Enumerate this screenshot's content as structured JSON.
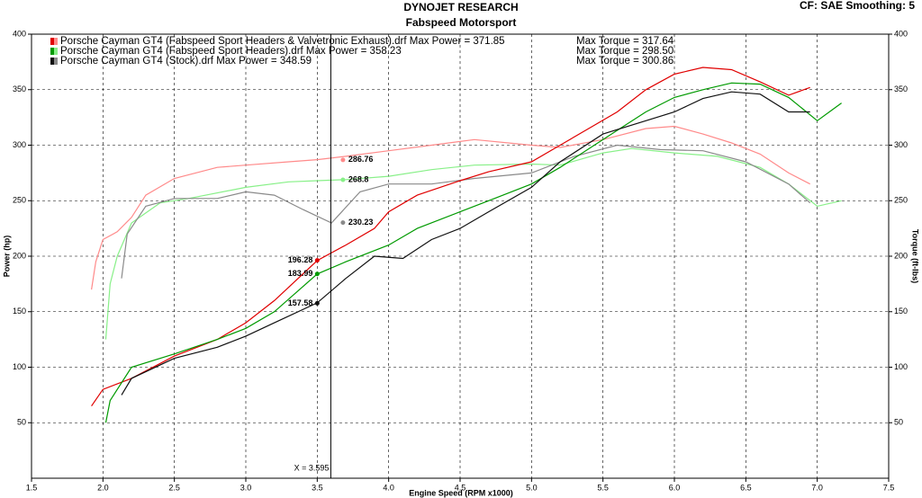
{
  "chart_data": {
    "type": "line",
    "title": "DYNOJET RESEARCH",
    "subtitle": "Fabspeed Motorsport",
    "settings_text": "CF: SAE  Smoothing: 5",
    "x_label": "Engine Speed (RPM x1000)",
    "y_label": "Power (hp)",
    "y2_label": "Torque (ft-lbs)",
    "grid": true,
    "xlim": [
      1.5,
      7.5
    ],
    "xticks": [
      1.5,
      {
        "value": 2,
        "label": "2.0"
      },
      2.5,
      {
        "value": 3,
        "label": "3.0"
      },
      3.5,
      {
        "value": 4,
        "label": "4.0"
      },
      4.5,
      {
        "value": 5,
        "label": "5.0"
      },
      5.5,
      {
        "value": 6,
        "label": "6.0"
      },
      6.5,
      {
        "value": 7,
        "label": "7.0"
      },
      7.5
    ],
    "ylim": [
      0,
      400
    ],
    "yticks": [
      50,
      100,
      150,
      200,
      250,
      300,
      350,
      400
    ],
    "y2lim": [
      0,
      400
    ],
    "y2ticks": [
      50,
      100,
      150,
      200,
      250,
      300,
      350,
      400
    ],
    "series": [
      {
        "name": "Porsche Cayman GT4 (Fabspeed Sport Headers & Valvetronic Exhaust).drf Max Power = 371.85",
        "torque_name": "Max Torque = 317.64",
        "color": "#e00000",
        "torque_color": "#ff8a8a",
        "x": [
          1.92,
          2.0,
          2.2,
          2.5,
          2.8,
          3.0,
          3.2,
          3.5,
          3.7,
          3.9,
          4.0,
          4.2,
          4.5,
          4.7,
          5.0,
          5.2,
          5.4,
          5.6,
          5.8,
          6.0,
          6.2,
          6.4,
          6.6,
          6.8,
          6.95
        ],
        "values": [
          65,
          80,
          90,
          110,
          125,
          140,
          160,
          196,
          210,
          225,
          240,
          255,
          268,
          276,
          285,
          300,
          315,
          330,
          350,
          364,
          370,
          368,
          357,
          345,
          352
        ],
        "torque_x": [
          1.92,
          1.95,
          2.0,
          2.1,
          2.2,
          2.3,
          2.5,
          2.8,
          3.0,
          3.3,
          3.5,
          3.7,
          4.0,
          4.3,
          4.6,
          5.0,
          5.2,
          5.5,
          5.8,
          6.0,
          6.2,
          6.4,
          6.6,
          6.8,
          6.95
        ],
        "torque": [
          170,
          195,
          215,
          222,
          235,
          255,
          270,
          280,
          282,
          285,
          287,
          290,
          295,
          300,
          305,
          300,
          298,
          305,
          315,
          317,
          310,
          302,
          292,
          275,
          265
        ]
      },
      {
        "name": "Porsche Cayman GT4 (Fabspeed Sport Headers).drf Max Power = 358.23",
        "torque_name": "Max Torque = 298.50",
        "color": "#009a00",
        "torque_color": "#88f088",
        "x": [
          2.02,
          2.05,
          2.2,
          2.5,
          2.8,
          3.0,
          3.2,
          3.5,
          3.7,
          4.0,
          4.2,
          4.5,
          4.7,
          5.0,
          5.2,
          5.5,
          5.8,
          6.0,
          6.2,
          6.4,
          6.6,
          6.8,
          7.0,
          7.17
        ],
        "values": [
          50,
          70,
          100,
          112,
          125,
          135,
          150,
          184,
          195,
          210,
          225,
          240,
          250,
          265,
          280,
          305,
          330,
          343,
          350,
          356,
          355,
          343,
          322,
          338
        ],
        "torque_x": [
          2.02,
          2.05,
          2.1,
          2.2,
          2.4,
          2.6,
          3.0,
          3.3,
          3.5,
          3.7,
          4.0,
          4.3,
          4.6,
          5.0,
          5.2,
          5.5,
          5.7,
          6.0,
          6.3,
          6.6,
          6.8,
          7.0,
          7.17
        ],
        "torque": [
          125,
          175,
          200,
          230,
          248,
          252,
          262,
          267,
          268,
          269,
          272,
          278,
          282,
          283,
          282,
          293,
          297,
          293,
          290,
          280,
          265,
          245,
          250
        ]
      },
      {
        "name": "Porsche Cayman GT4 (Stock).drf Max Power = 348.59",
        "torque_name": "Max Torque = 300.86",
        "color": "#111111",
        "torque_color": "#8a8a8a",
        "x": [
          2.13,
          2.2,
          2.5,
          2.8,
          3.0,
          3.2,
          3.5,
          3.7,
          3.9,
          4.1,
          4.3,
          4.5,
          4.7,
          5.0,
          5.2,
          5.5,
          5.8,
          6.0,
          6.2,
          6.4,
          6.6,
          6.8,
          6.95
        ],
        "values": [
          75,
          90,
          108,
          118,
          128,
          140,
          158,
          180,
          200,
          198,
          215,
          225,
          240,
          262,
          285,
          310,
          322,
          330,
          342,
          348,
          346,
          330,
          330
        ],
        "torque_x": [
          2.13,
          2.17,
          2.3,
          2.5,
          2.8,
          3.0,
          3.2,
          3.4,
          3.6,
          3.8,
          4.0,
          4.3,
          4.6,
          5.0,
          5.3,
          5.6,
          5.9,
          6.2,
          6.5,
          6.8,
          6.95
        ],
        "torque": [
          180,
          220,
          245,
          252,
          252,
          258,
          255,
          242,
          230,
          258,
          265,
          265,
          270,
          275,
          290,
          300,
          296,
          295,
          285,
          265,
          248
        ]
      }
    ],
    "cursor": {
      "text": "X = 3.595",
      "x": 3.595
    },
    "power_markers": [
      {
        "x": 3.5,
        "value": 196.28,
        "series": 0
      },
      {
        "x": 3.5,
        "value": 183.99,
        "series": 1
      },
      {
        "x": 3.5,
        "value": 157.58,
        "series": 2
      }
    ],
    "torque_markers": [
      {
        "x": 3.68,
        "value": 286.76,
        "series": 0
      },
      {
        "x": 3.68,
        "value": 268.8,
        "series": 1
      },
      {
        "x": 3.68,
        "value": 230.23,
        "series": 2
      }
    ]
  }
}
